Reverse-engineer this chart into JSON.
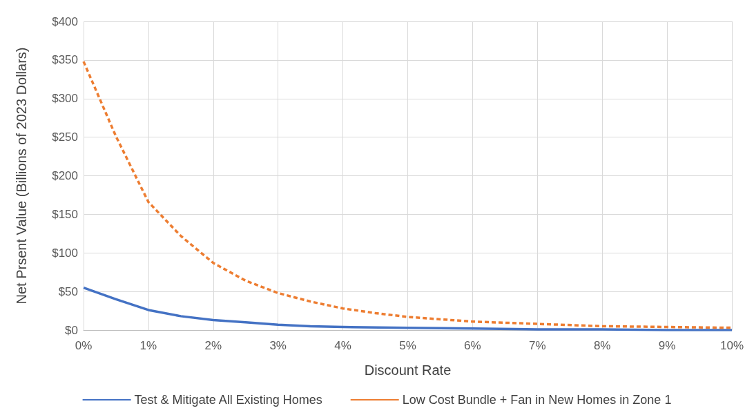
{
  "chart_data": {
    "type": "line",
    "xlabel": "Discount Rate",
    "ylabel": "Net Prsent Value (Billions of 2023 Dollars)",
    "xlim": [
      0,
      10
    ],
    "xticks": [
      {
        "value": 0,
        "label": "0%"
      },
      {
        "value": 1,
        "label": "1%"
      },
      {
        "value": 2,
        "label": "2%"
      },
      {
        "value": 3,
        "label": "3%"
      },
      {
        "value": 4,
        "label": "4%"
      },
      {
        "value": 5,
        "label": "5%"
      },
      {
        "value": 6,
        "label": "6%"
      },
      {
        "value": 7,
        "label": "7%"
      },
      {
        "value": 8,
        "label": "8%"
      },
      {
        "value": 9,
        "label": "9%"
      },
      {
        "value": 10,
        "label": "10%"
      }
    ],
    "ylim": [
      0,
      400
    ],
    "yticks": [
      {
        "value": 0,
        "label": "$0"
      },
      {
        "value": 50,
        "label": "$50"
      },
      {
        "value": 100,
        "label": "$100"
      },
      {
        "value": 150,
        "label": "$150"
      },
      {
        "value": 200,
        "label": "$200"
      },
      {
        "value": 250,
        "label": "$250"
      },
      {
        "value": 300,
        "label": "$300"
      },
      {
        "value": 350,
        "label": "$350"
      },
      {
        "value": 400,
        "label": "$400"
      }
    ],
    "grid": true,
    "legend": "bottom",
    "marker": "none",
    "series": [
      {
        "name": "Test & Mitigate All Existing Homes",
        "color": "#4472c4",
        "line_style": "solid",
        "x": [
          0,
          0.5,
          1,
          1.5,
          2,
          2.5,
          3,
          3.5,
          4,
          5,
          6,
          7,
          8,
          9,
          10
        ],
        "values": [
          55,
          40,
          26,
          18,
          13,
          10,
          7,
          5,
          4,
          3,
          2,
          1,
          1,
          0,
          0
        ]
      },
      {
        "name": "Low Cost Bundle + Fan in New Homes in Zone 1",
        "color": "#ed7d31",
        "line_style": "dashed",
        "x": [
          0,
          0.5,
          1,
          1.5,
          2,
          2.5,
          3,
          3.5,
          4,
          4.5,
          5,
          6,
          7,
          8,
          9,
          10
        ],
        "values": [
          348,
          251,
          166,
          122,
          87,
          64,
          48,
          37,
          28,
          22,
          17,
          11,
          8,
          5,
          4,
          3
        ]
      }
    ]
  }
}
